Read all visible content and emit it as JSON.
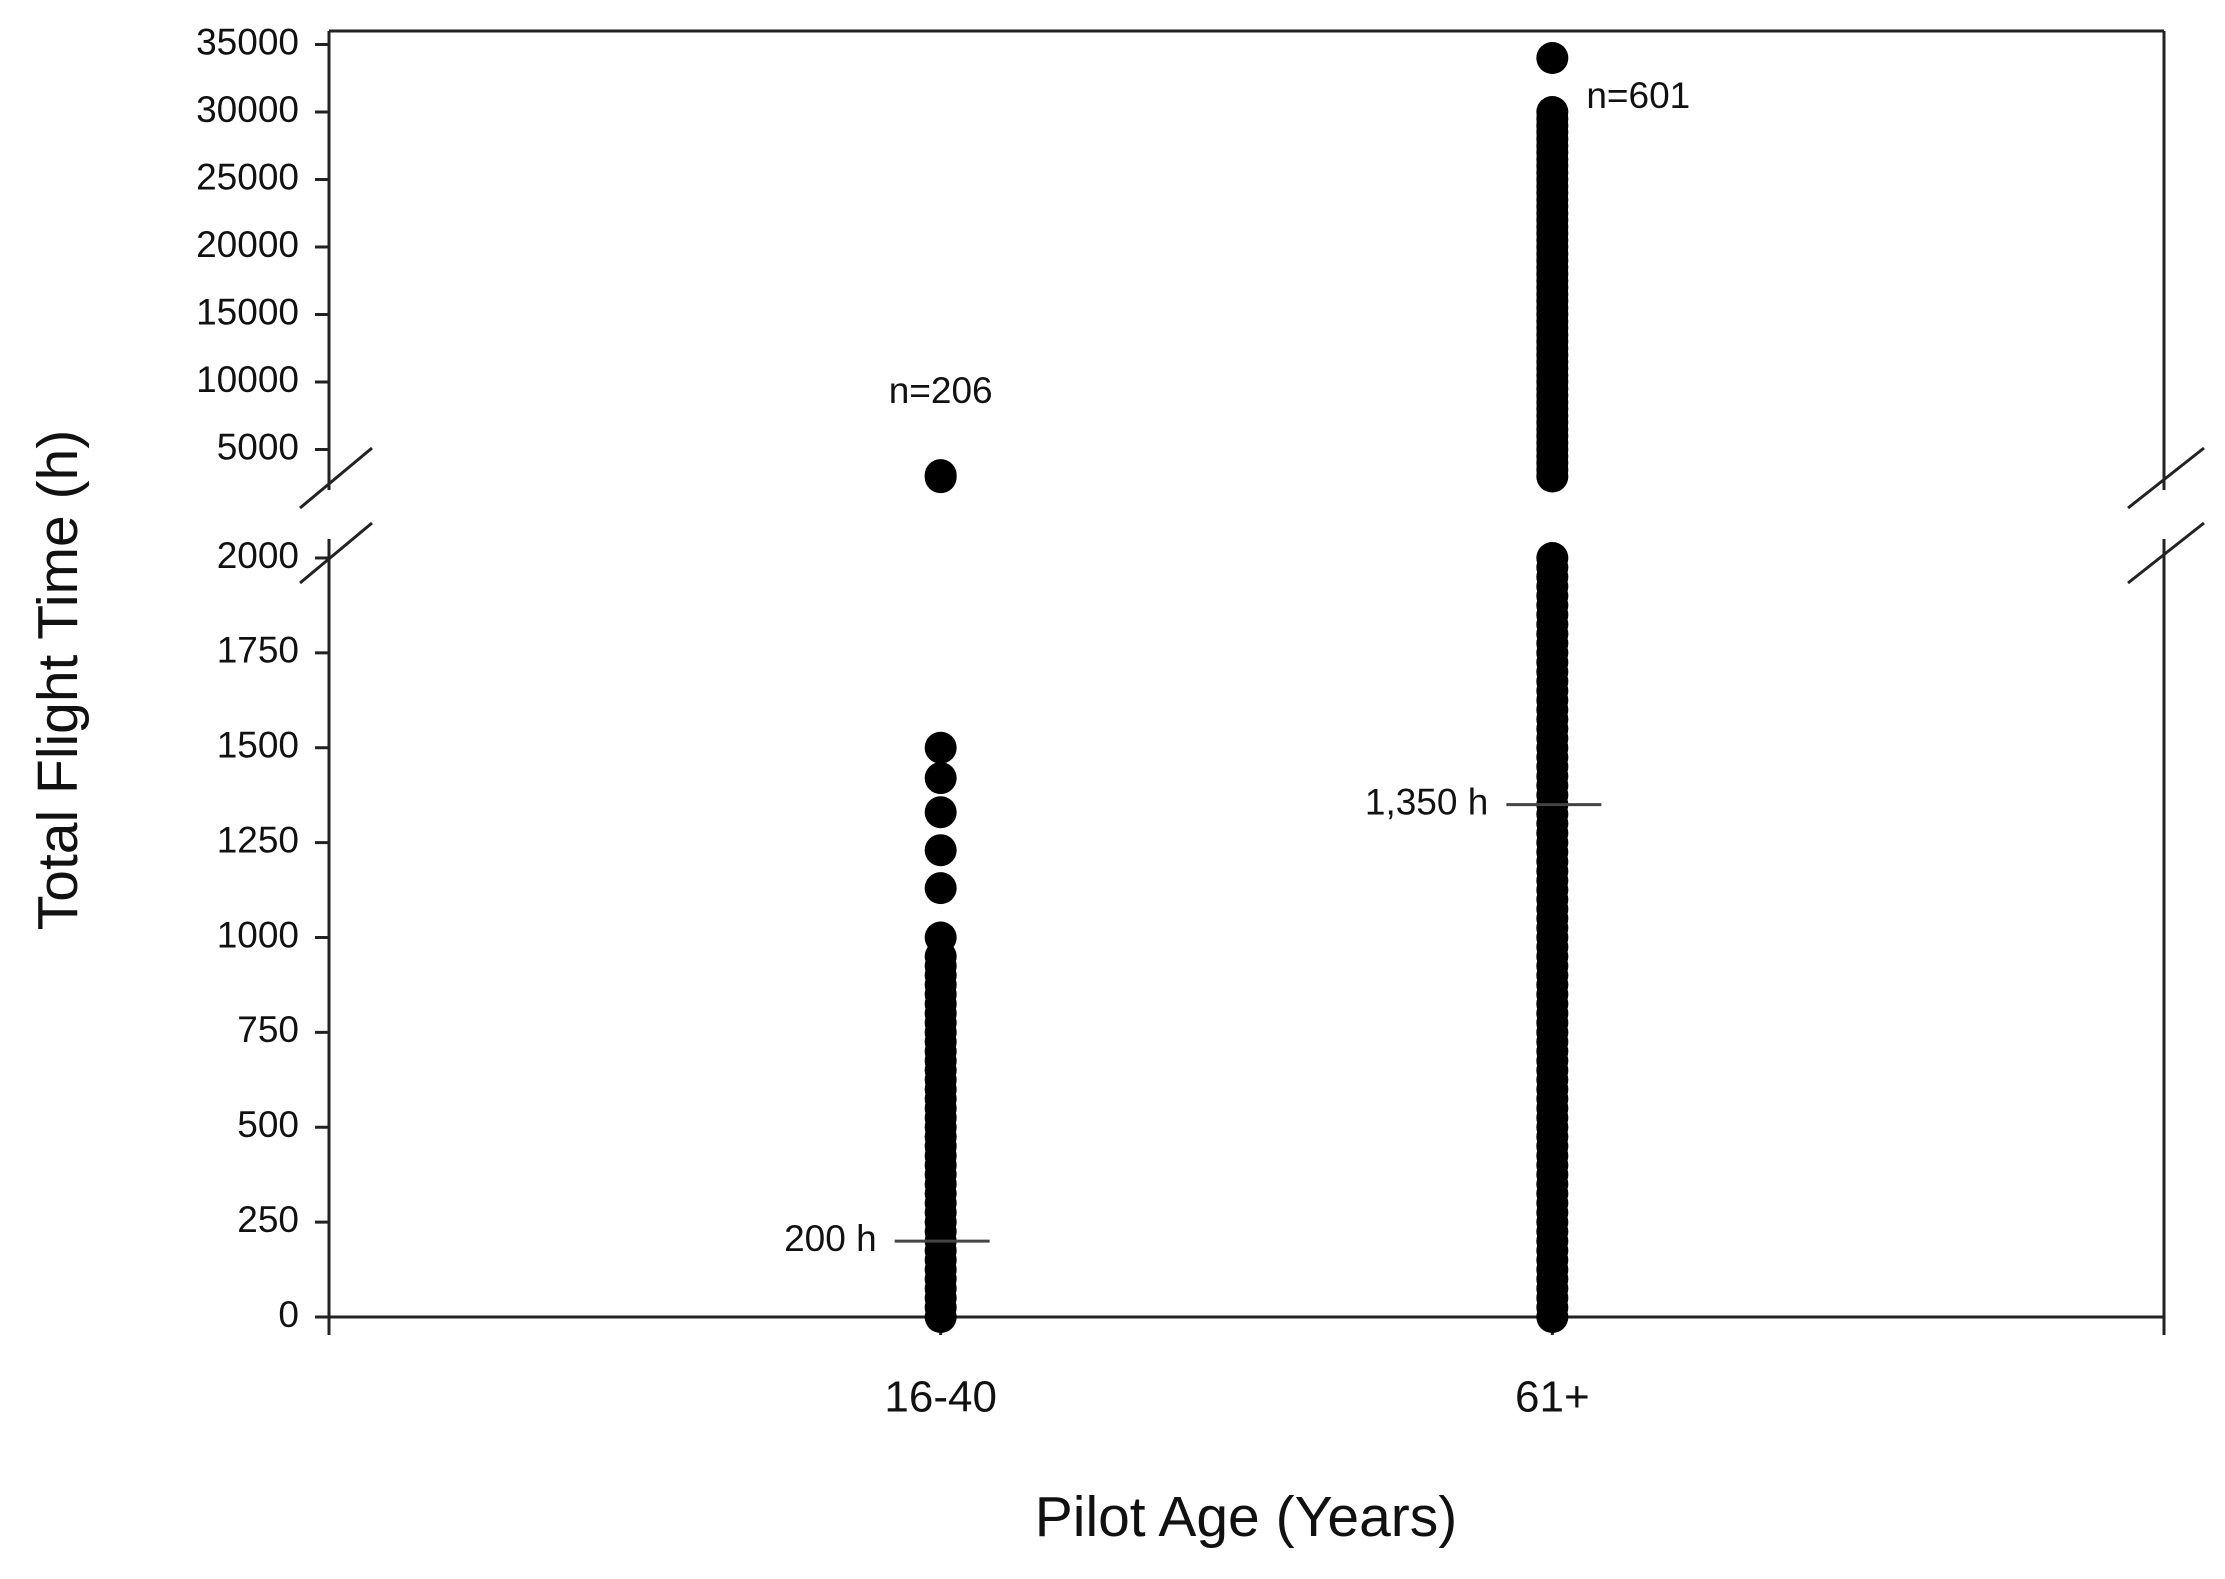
{
  "chart_data": {
    "type": "strip",
    "x_label": "Pilot Age (Years)",
    "y_label": "Total Flight Time (h)",
    "categories": [
      "16-40",
      "61+"
    ],
    "color": "#000000",
    "values": [
      [
        0,
        25,
        50,
        75,
        100,
        125,
        150,
        175,
        200,
        225,
        250,
        275,
        300,
        325,
        350,
        375,
        400,
        425,
        450,
        475,
        500,
        525,
        550,
        575,
        600,
        625,
        650,
        675,
        700,
        725,
        750,
        775,
        800,
        825,
        850,
        875,
        900,
        925,
        950,
        1000,
        1130,
        1230,
        1330,
        1420,
        1500,
        2950,
        3100
      ],
      [
        0,
        25,
        50,
        75,
        100,
        125,
        150,
        175,
        200,
        225,
        250,
        275,
        300,
        325,
        350,
        375,
        400,
        425,
        450,
        475,
        500,
        525,
        550,
        575,
        600,
        625,
        650,
        675,
        700,
        725,
        750,
        775,
        800,
        825,
        850,
        875,
        900,
        925,
        950,
        975,
        1000,
        1025,
        1050,
        1075,
        1100,
        1125,
        1150,
        1175,
        1200,
        1225,
        1250,
        1275,
        1300,
        1325,
        1350,
        1375,
        1400,
        1425,
        1450,
        1475,
        1500,
        1525,
        1550,
        1575,
        1600,
        1625,
        1650,
        1675,
        1700,
        1725,
        1750,
        1775,
        1800,
        1825,
        1850,
        1875,
        1900,
        1925,
        1950,
        1975,
        2000,
        3000,
        3500,
        4000,
        4500,
        5000,
        5500,
        6000,
        6500,
        7000,
        7500,
        8000,
        8500,
        9000,
        9500,
        10000,
        10500,
        11000,
        11500,
        12000,
        12500,
        13000,
        13500,
        14000,
        14500,
        15000,
        15500,
        16000,
        16500,
        17000,
        17500,
        18000,
        18500,
        19000,
        19500,
        20000,
        20500,
        21000,
        21500,
        22000,
        22500,
        23000,
        23500,
        24000,
        24500,
        25000,
        25500,
        26000,
        26500,
        27000,
        27500,
        28000,
        28500,
        29000,
        29500,
        30000,
        34000
      ]
    ],
    "medians": [
      {
        "value": 200,
        "label": "200 h"
      },
      {
        "value": 1350,
        "label": "1,350 h"
      }
    ],
    "count_labels": [
      "n=206",
      "n=601"
    ],
    "y_segments": [
      {
        "ylim": [
          0,
          2050
        ],
        "yticks": [
          0,
          250,
          500,
          750,
          1000,
          1250,
          1500,
          1750,
          2000
        ]
      },
      {
        "ylim": [
          2000,
          36000
        ],
        "yticks": [
          5000,
          10000,
          15000,
          20000,
          25000,
          30000,
          35000
        ]
      }
    ]
  }
}
